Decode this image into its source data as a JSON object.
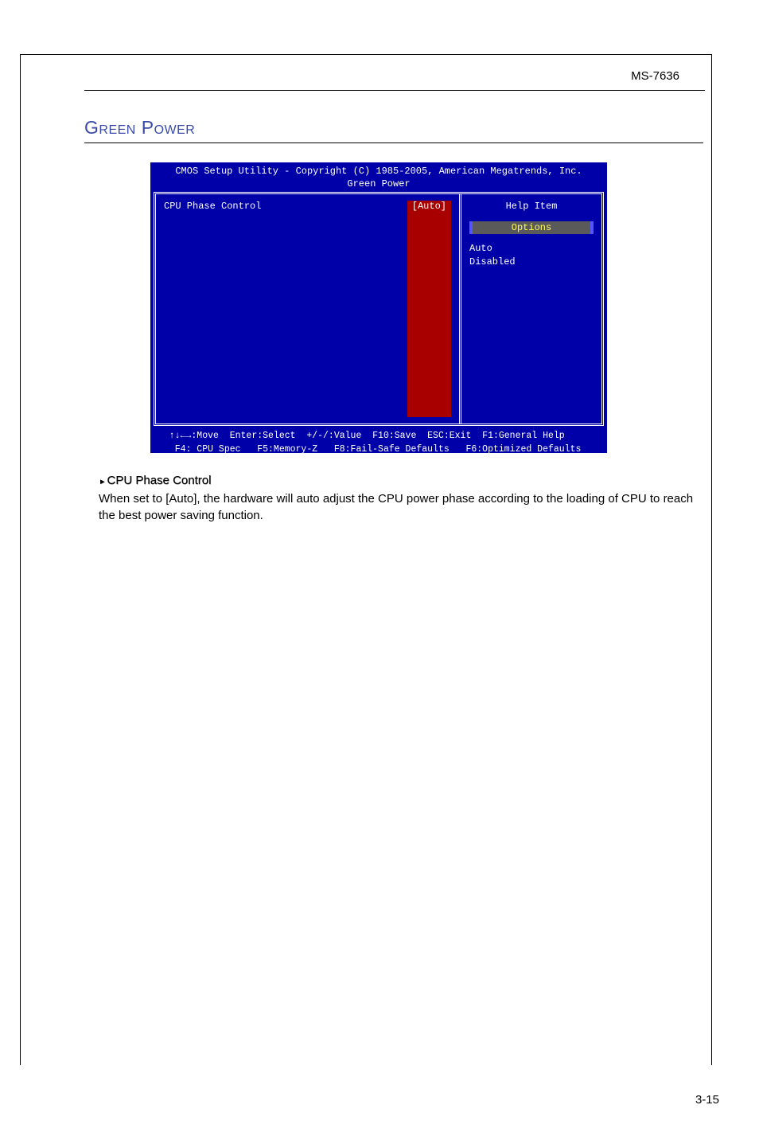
{
  "header": {
    "model": "MS-7636"
  },
  "section": {
    "title": "Green Power"
  },
  "bios": {
    "title_line1": "CMOS Setup Utility - Copyright (C) 1985-2005, American Megatrends, Inc.",
    "title_line2": "Green Power",
    "setting_label": "CPU Phase Control",
    "setting_value": "[Auto]",
    "help_label": "Help Item",
    "options_label": "Options",
    "options": [
      "Auto",
      "Disabled"
    ],
    "footer_line1": "  ↑↓←→:Move  Enter:Select  +/-/:Value  F10:Save  ESC:Exit  F1:General Help",
    "footer_line2": "   F4: CPU Spec   F5:Memory-Z   F8:Fail-Safe Defaults   F6:Optimized Defaults",
    "colors": {
      "background": "#0000a8",
      "text": "#ffffff",
      "highlight_bg": "#a80000",
      "options_bg": "#5a5a5a",
      "options_text": "#ffff55"
    }
  },
  "content": {
    "item_title": "CPU Phase Control",
    "item_desc": "When set to [Auto], the hardware will auto adjust the CPU power phase according to the loading of CPU to reach the best power saving function."
  },
  "page_number": "3-15"
}
